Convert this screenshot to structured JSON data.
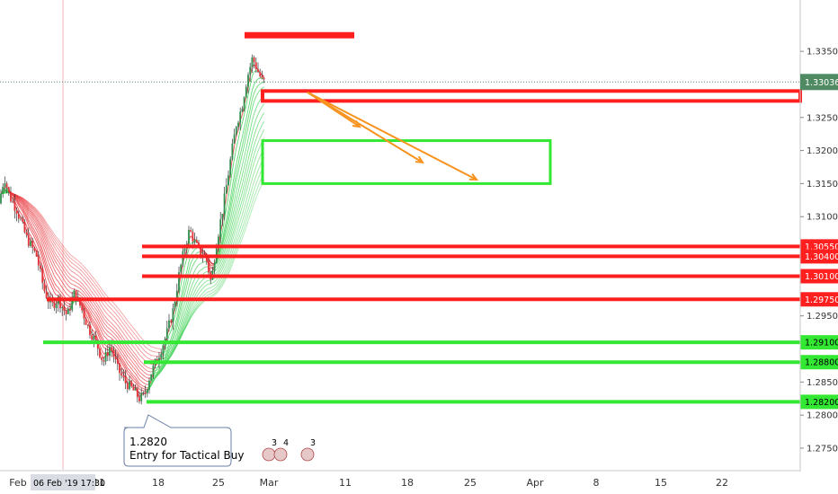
{
  "chart_data": {
    "type": "candlestick",
    "colors": {
      "up": "#2f8f4e",
      "down": "#e0343a",
      "resistance": "#ff1f1f",
      "support": "#33e833",
      "arrow": "#f7931e",
      "price_badge": "#4f8a63"
    },
    "y_axis": {
      "range": [
        1.2735,
        1.3395
      ],
      "ticks": [
        "1.33500",
        "1.32500",
        "1.32000",
        "1.31500",
        "1.31000",
        "1.29500",
        "1.28500",
        "1.28000",
        "1.27500"
      ],
      "current_price": "1.33036"
    },
    "x_axis": {
      "labels": [
        "Feb",
        "11",
        "18",
        "25",
        "Mar",
        "11",
        "18",
        "25",
        "Apr",
        "8",
        "15",
        "22"
      ],
      "crosshair_label": "06 Feb '19   17:30"
    },
    "levels": [
      {
        "value": 1.3055,
        "label": "1.30550",
        "color": "resistance"
      },
      {
        "value": 1.304,
        "label": "1.30400",
        "color": "resistance"
      },
      {
        "value": 1.301,
        "label": "1.30100",
        "color": "resistance"
      },
      {
        "value": 1.2975,
        "label": "1.29750",
        "color": "resistance"
      },
      {
        "value": 1.291,
        "label": "1.29100",
        "color": "support"
      },
      {
        "value": 1.288,
        "label": "1.28800",
        "color": "support"
      },
      {
        "value": 1.282,
        "label": "1.28200",
        "color": "support"
      }
    ],
    "target_zone": {
      "from": 1.315,
      "to": 1.3215
    },
    "resistance_zone": {
      "from": 1.3275,
      "to": 1.329
    },
    "peak_marker": 1.3375,
    "annotation": {
      "line1": "1.2820",
      "line2": "Entry for Tactical Buy"
    },
    "event_flags": [
      "3",
      "4",
      "3"
    ]
  }
}
